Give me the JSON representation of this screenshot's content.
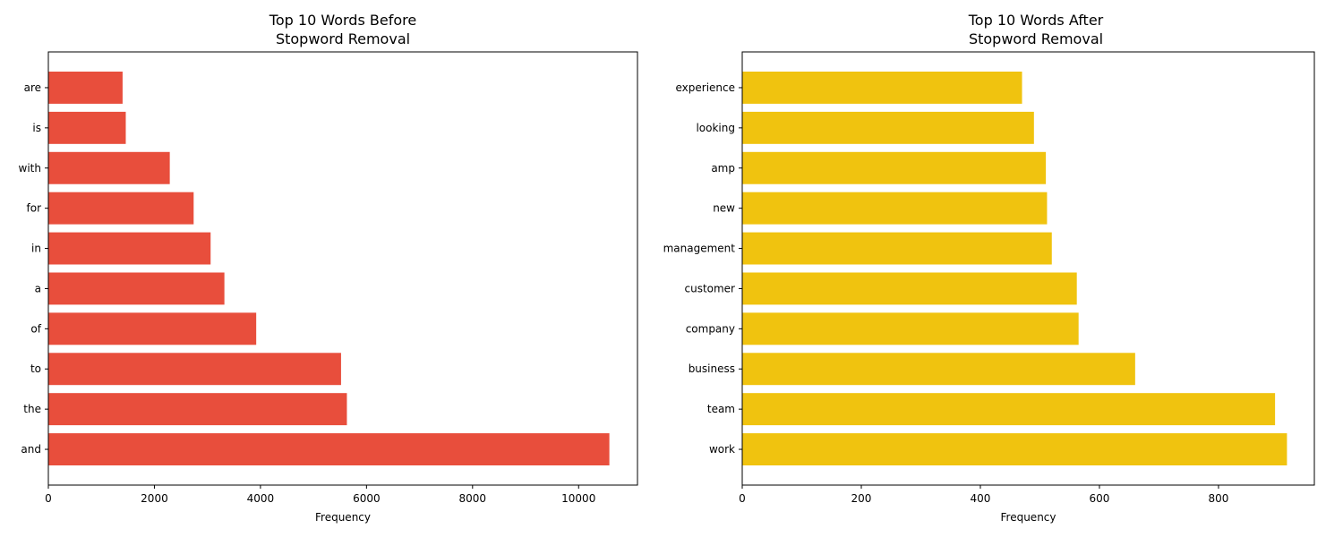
{
  "chart_data": [
    {
      "type": "bar",
      "orientation": "horizontal",
      "title": "Top 10 Words Before\nStopword Removal",
      "xlabel": "Frequency",
      "ylabel": "",
      "categories": [
        "and",
        "the",
        "to",
        "of",
        "a",
        "in",
        "for",
        "with",
        "is",
        "are"
      ],
      "values": [
        10580,
        5630,
        5520,
        3920,
        3320,
        3060,
        2740,
        2290,
        1460,
        1400
      ],
      "xlim": [
        0,
        11110
      ],
      "xticks": [
        0,
        2000,
        4000,
        6000,
        8000,
        10000
      ],
      "color": "#e84e3c",
      "grid": false
    },
    {
      "type": "bar",
      "orientation": "horizontal",
      "title": "Top 10 Words After\nStopword Removal",
      "xlabel": "Frequency",
      "ylabel": "",
      "categories": [
        "work",
        "team",
        "business",
        "company",
        "customer",
        "management",
        "new",
        "amp",
        "looking",
        "experience"
      ],
      "values": [
        915,
        895,
        660,
        565,
        562,
        520,
        512,
        510,
        490,
        470
      ],
      "xlim": [
        0,
        961
      ],
      "xticks": [
        0,
        200,
        400,
        600,
        800
      ],
      "color": "#f0c30f",
      "grid": false
    }
  ]
}
